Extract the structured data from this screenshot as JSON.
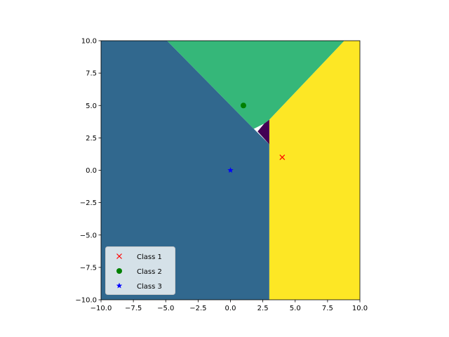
{
  "chart_data": {
    "type": "scatter",
    "title": "",
    "xlabel": "",
    "ylabel": "",
    "xlim": [
      -10,
      10
    ],
    "ylim": [
      -10,
      10
    ],
    "grid": false,
    "legend_placement": "lower-left",
    "x_ticks": [
      -10.0,
      -7.5,
      -5.0,
      -2.5,
      0.0,
      2.5,
      5.0,
      7.5,
      10.0
    ],
    "x_tick_labels": [
      "−10.0",
      "−7.5",
      "−5.0",
      "−2.5",
      "0.0",
      "2.5",
      "5.0",
      "7.5",
      "10.0"
    ],
    "y_ticks": [
      -10.0,
      -7.5,
      -5.0,
      -2.5,
      0.0,
      2.5,
      5.0,
      7.5,
      10.0
    ],
    "y_tick_labels": [
      "−10.0",
      "−7.5",
      "−5.0",
      "−2.5",
      "0.0",
      "2.5",
      "5.0",
      "7.5",
      "10.0"
    ],
    "series": [
      {
        "name": "Class 1",
        "marker": "x",
        "color": "#ff0000",
        "points": [
          [
            4,
            1
          ]
        ]
      },
      {
        "name": "Class 2",
        "marker": "o",
        "color": "#008000",
        "points": [
          [
            1,
            5
          ]
        ]
      },
      {
        "name": "Class 3",
        "marker": "*",
        "color": "#0000ff",
        "points": [
          [
            0,
            0
          ]
        ]
      }
    ],
    "decision_regions": [
      {
        "color": "#31688e",
        "vertices": [
          [
            -10,
            -10
          ],
          [
            3,
            -10
          ],
          [
            3,
            2
          ],
          [
            1.8,
            3.2
          ],
          [
            -4.9,
            10
          ],
          [
            -10,
            10
          ]
        ]
      },
      {
        "color": "#35b779",
        "vertices": [
          [
            -4.9,
            10
          ],
          [
            8.8,
            10
          ],
          [
            3,
            3.9
          ],
          [
            2.6,
            3.6
          ],
          [
            1.8,
            3.2
          ]
        ]
      },
      {
        "color": "#fde725",
        "vertices": [
          [
            3,
            -10
          ],
          [
            10,
            -10
          ],
          [
            10,
            10
          ],
          [
            8.8,
            10
          ],
          [
            3,
            3.9
          ]
        ]
      },
      {
        "color": "#440154",
        "vertices": [
          [
            3,
            2
          ],
          [
            3,
            3.9
          ],
          [
            2.6,
            3.6
          ],
          [
            2.1,
            3.0
          ]
        ]
      }
    ]
  }
}
